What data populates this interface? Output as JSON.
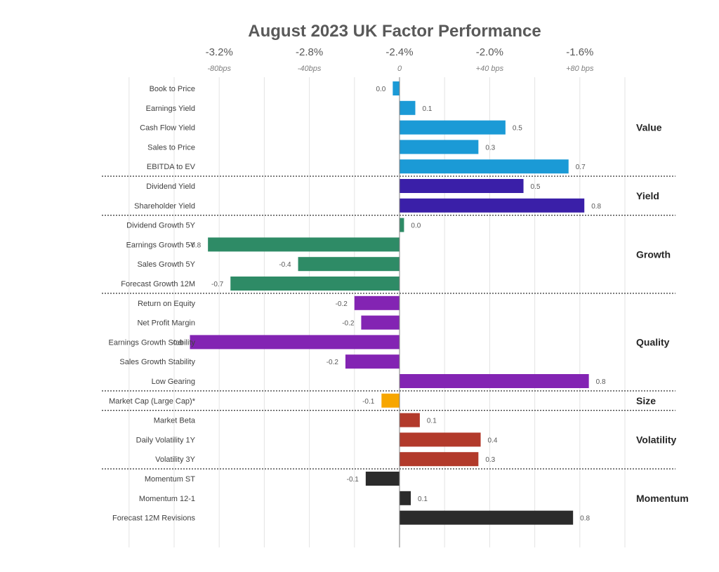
{
  "chart_data": {
    "type": "bar",
    "orientation": "horizontal",
    "title": "August 2023 UK Factor Performance",
    "xlabel": "",
    "ylabel": "",
    "unit": "%",
    "xlim": [
      -1.2,
      1.0
    ],
    "grid": true,
    "grid_step": 0.2,
    "baseline_label": "0",
    "top_axis_ticks": [
      {
        "value": -0.8,
        "pct_label": "-3.2%",
        "bps_label": "-80bps"
      },
      {
        "value": -0.4,
        "pct_label": "-2.8%",
        "bps_label": "-40bps"
      },
      {
        "value": 0.0,
        "pct_label": "-2.4%",
        "bps_label": "0"
      },
      {
        "value": 0.4,
        "pct_label": "-2.0%",
        "bps_label": "+40 bps"
      },
      {
        "value": 0.8,
        "pct_label": "-1.6%",
        "bps_label": "+80 bps"
      }
    ],
    "groups": [
      {
        "name": "Value",
        "color": "#1b9ad6",
        "factors": [
          {
            "label": "Book to Price",
            "value": -0.03,
            "display": "0.0"
          },
          {
            "label": "Earnings Yield",
            "value": 0.07,
            "display": "0.1"
          },
          {
            "label": "Cash Flow Yield",
            "value": 0.47,
            "display": "0.5"
          },
          {
            "label": "Sales to Price",
            "value": 0.35,
            "display": "0.3"
          },
          {
            "label": "EBITDA to EV",
            "value": 0.75,
            "display": "0.7"
          }
        ]
      },
      {
        "name": "Yield",
        "color": "#3a1fa8",
        "factors": [
          {
            "label": "Dividend Yield",
            "value": 0.55,
            "display": "0.5"
          },
          {
            "label": "Shareholder Yield",
            "value": 0.82,
            "display": "0.8"
          }
        ]
      },
      {
        "name": "Growth",
        "color": "#2e8b66",
        "factors": [
          {
            "label": "Dividend Growth 5Y",
            "value": 0.02,
            "display": "0.0"
          },
          {
            "label": "Earnings Growth 5Y",
            "value": -0.85,
            "display": "-0.8"
          },
          {
            "label": "Sales Growth 5Y",
            "value": -0.45,
            "display": "-0.4"
          },
          {
            "label": "Forecast Growth 12M",
            "value": -0.75,
            "display": "-0.7"
          }
        ]
      },
      {
        "name": "Quality",
        "color": "#8324b3",
        "factors": [
          {
            "label": "Return on Equity",
            "value": -0.2,
            "display": "-0.2"
          },
          {
            "label": "Net Profit Margin",
            "value": -0.17,
            "display": "-0.2"
          },
          {
            "label": "Earnings Growth Stability",
            "value": -0.93,
            "display": "-0.9"
          },
          {
            "label": "Sales Growth Stability",
            "value": -0.24,
            "display": "-0.2"
          },
          {
            "label": "Low Gearing",
            "value": 0.84,
            "display": "0.8"
          }
        ]
      },
      {
        "name": "Size",
        "color": "#f7a600",
        "factors": [
          {
            "label": "Market Cap (Large Cap)*",
            "value": -0.08,
            "display": "-0.1"
          }
        ]
      },
      {
        "name": "Volatility",
        "color": "#b23a2b",
        "factors": [
          {
            "label": "Market Beta",
            "value": 0.09,
            "display": "0.1"
          },
          {
            "label": "Daily Volatility 1Y",
            "value": 0.36,
            "display": "0.4"
          },
          {
            "label": "Volatility 3Y",
            "value": 0.35,
            "display": "0.3"
          }
        ]
      },
      {
        "name": "Momentum",
        "color": "#2b2b2b",
        "factors": [
          {
            "label": "Momentum ST",
            "value": -0.15,
            "display": "-0.1"
          },
          {
            "label": "Momentum 12-1",
            "value": 0.05,
            "display": "0.1"
          },
          {
            "label": "Forecast 12M Revisions",
            "value": 0.77,
            "display": "0.8"
          }
        ]
      }
    ]
  }
}
